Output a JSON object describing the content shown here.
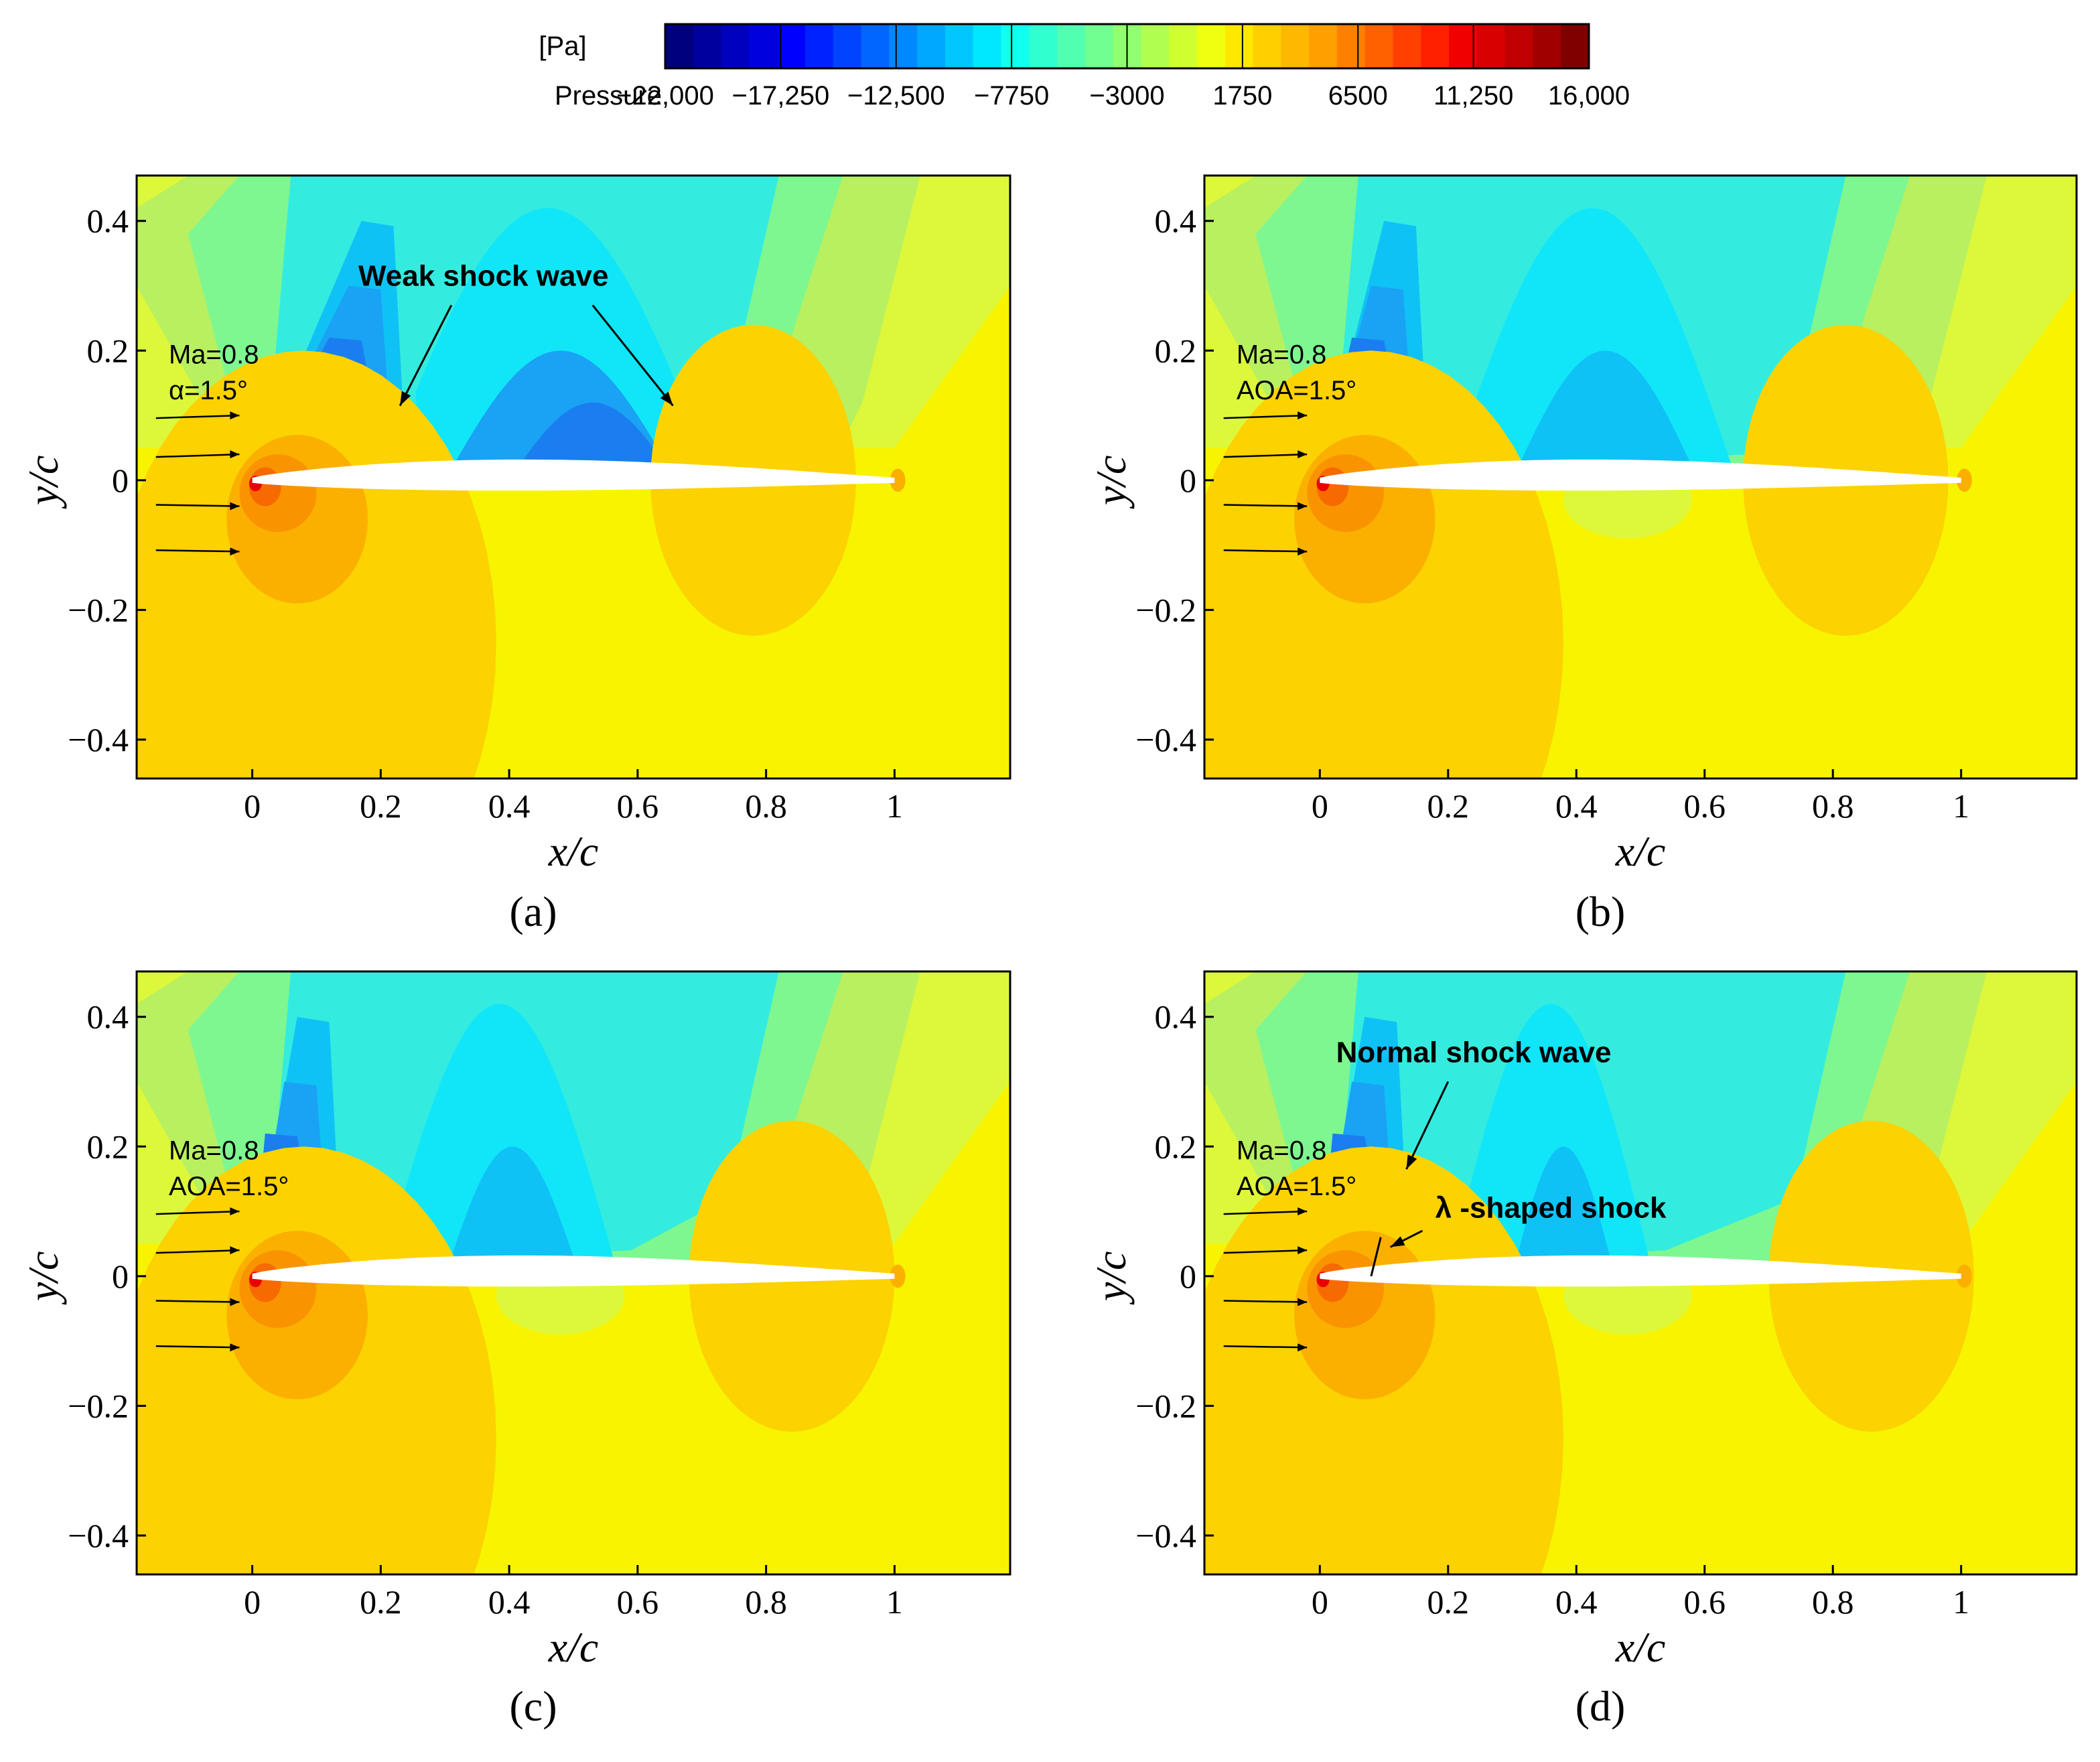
{
  "colorbar": {
    "unit": "[Pa]",
    "label": "Pressure",
    "ticks": [
      -22000,
      -17250,
      -12500,
      -7750,
      -3000,
      1750,
      6500,
      11250,
      16000
    ],
    "tick_labels": [
      "−22,000",
      "−17,250",
      "−12,500",
      "−7750",
      "−3000",
      "1750",
      "6500",
      "11,250",
      "16,000"
    ],
    "levels": 33,
    "colors": [
      "#00007f",
      "#00009f",
      "#0000bf",
      "#0000df",
      "#0000ff",
      "#0022ff",
      "#0044ff",
      "#0066ff",
      "#0088ff",
      "#00a8ff",
      "#00c8ff",
      "#00e8ff",
      "#10ffee",
      "#30ffd0",
      "#50ffb0",
      "#70ff90",
      "#90ff70",
      "#b0ff50",
      "#d0ff30",
      "#f0ff10",
      "#ffe800",
      "#ffd000",
      "#ffb800",
      "#ffa000",
      "#ff8000",
      "#ff6000",
      "#ff4000",
      "#ff2000",
      "#f00000",
      "#d80000",
      "#c00000",
      "#a00000",
      "#800000"
    ]
  },
  "chart_data": [
    {
      "type": "contour",
      "panel": "(a)",
      "xlabel": "x/c",
      "ylabel": "y/c",
      "xlim": [
        -0.18,
        1.18
      ],
      "ylim": [
        -0.46,
        0.47
      ],
      "xticks": [
        0,
        0.2,
        0.4,
        0.6,
        0.8,
        1
      ],
      "xtick_labels": [
        "0",
        "0.2",
        "0.4",
        "0.6",
        "0.8",
        "1"
      ],
      "yticks": [
        -0.4,
        -0.2,
        0,
        0.2,
        0.4
      ],
      "ytick_labels": [
        "−0.4",
        "−0.2",
        "0",
        "0.2",
        "0.4"
      ],
      "condition_ma": "Ma=0.8",
      "condition_angle": "α=1.5°",
      "annotations": [
        "Weak shock wave"
      ]
    },
    {
      "type": "contour",
      "panel": "(b)",
      "xlabel": "x/c",
      "ylabel": "y/c",
      "xlim": [
        -0.18,
        1.18
      ],
      "ylim": [
        -0.46,
        0.47
      ],
      "xticks": [
        0,
        0.2,
        0.4,
        0.6,
        0.8,
        1
      ],
      "xtick_labels": [
        "0",
        "0.2",
        "0.4",
        "0.6",
        "0.8",
        "1"
      ],
      "yticks": [
        -0.4,
        -0.2,
        0,
        0.2,
        0.4
      ],
      "ytick_labels": [
        "−0.4",
        "−0.2",
        "0",
        "0.2",
        "0.4"
      ],
      "condition_ma": "Ma=0.8",
      "condition_angle": "AOA=1.5°",
      "annotations": []
    },
    {
      "type": "contour",
      "panel": "(c)",
      "xlabel": "x/c",
      "ylabel": "y/c",
      "xlim": [
        -0.18,
        1.18
      ],
      "ylim": [
        -0.46,
        0.47
      ],
      "xticks": [
        0,
        0.2,
        0.4,
        0.6,
        0.8,
        1
      ],
      "xtick_labels": [
        "0",
        "0.2",
        "0.4",
        "0.6",
        "0.8",
        "1"
      ],
      "yticks": [
        -0.4,
        -0.2,
        0,
        0.2,
        0.4
      ],
      "ytick_labels": [
        "−0.4",
        "−0.2",
        "0",
        "0.2",
        "0.4"
      ],
      "condition_ma": "Ma=0.8",
      "condition_angle": "AOA=1.5°",
      "annotations": []
    },
    {
      "type": "contour",
      "panel": "(d)",
      "xlabel": "x/c",
      "ylabel": "y/c",
      "xlim": [
        -0.18,
        1.18
      ],
      "ylim": [
        -0.46,
        0.47
      ],
      "xticks": [
        0,
        0.2,
        0.4,
        0.6,
        0.8,
        1
      ],
      "xtick_labels": [
        "0",
        "0.2",
        "0.4",
        "0.6",
        "0.8",
        "1"
      ],
      "yticks": [
        -0.4,
        -0.2,
        0,
        0.2,
        0.4
      ],
      "ytick_labels": [
        "−0.4",
        "−0.2",
        "0",
        "0.2",
        "0.4"
      ],
      "condition_ma": "Ma=0.8",
      "condition_angle": "AOA=1.5°",
      "annotations": [
        "Normal shock wave",
        "λ -shaped shock"
      ]
    }
  ]
}
